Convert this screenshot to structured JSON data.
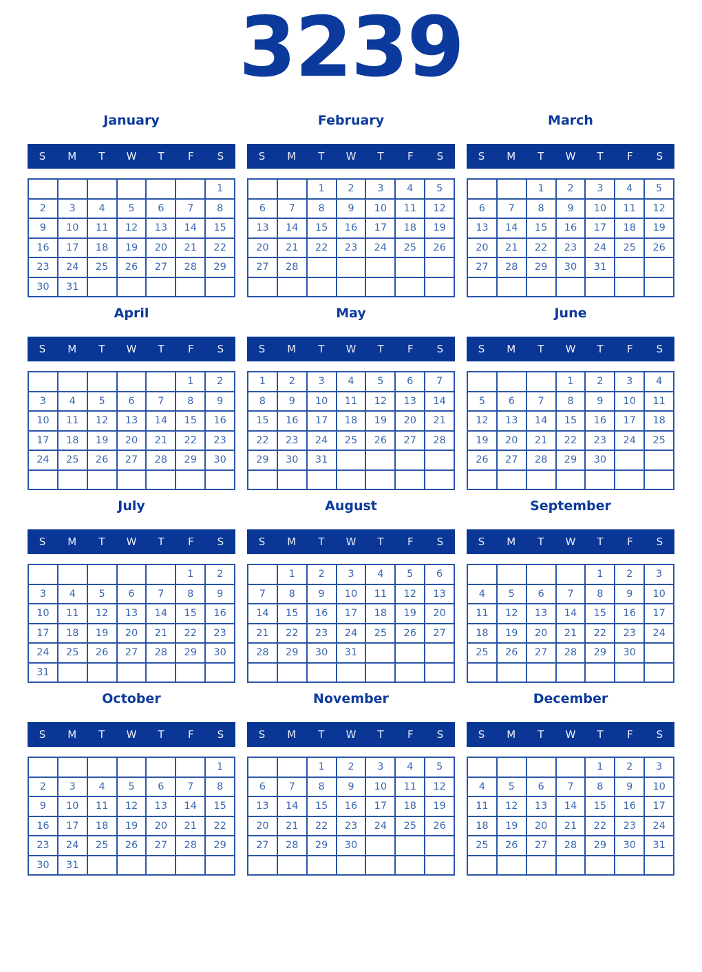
{
  "year_title": "3239",
  "weekday_letters": [
    "S",
    "M",
    "T",
    "W",
    "T",
    "F",
    "S"
  ],
  "colors": {
    "header_bg": "#0a3796",
    "grid_line": "#2a55a8",
    "day_number": "#3a67ae",
    "title_text": "#0c3a9c",
    "weekday_text": "#e8ecf6",
    "page_bg": "#ffffff"
  },
  "months": [
    {
      "name": "January",
      "weeks": [
        [
          "",
          "",
          "",
          "",
          "",
          "",
          "1"
        ],
        [
          "2",
          "3",
          "4",
          "5",
          "6",
          "7",
          "8"
        ],
        [
          "9",
          "10",
          "11",
          "12",
          "13",
          "14",
          "15"
        ],
        [
          "16",
          "17",
          "18",
          "19",
          "20",
          "21",
          "22"
        ],
        [
          "23",
          "24",
          "25",
          "26",
          "27",
          "28",
          "29"
        ],
        [
          "30",
          "31",
          "",
          "",
          "",
          "",
          ""
        ]
      ]
    },
    {
      "name": "February",
      "weeks": [
        [
          "",
          "",
          "1",
          "2",
          "3",
          "4",
          "5"
        ],
        [
          "6",
          "7",
          "8",
          "9",
          "10",
          "11",
          "12"
        ],
        [
          "13",
          "14",
          "15",
          "16",
          "17",
          "18",
          "19"
        ],
        [
          "20",
          "21",
          "22",
          "23",
          "24",
          "25",
          "26"
        ],
        [
          "27",
          "28",
          "",
          "",
          "",
          "",
          ""
        ],
        [
          "",
          "",
          "",
          "",
          "",
          "",
          ""
        ]
      ]
    },
    {
      "name": "March",
      "weeks": [
        [
          "",
          "",
          "1",
          "2",
          "3",
          "4",
          "5"
        ],
        [
          "6",
          "7",
          "8",
          "9",
          "10",
          "11",
          "12"
        ],
        [
          "13",
          "14",
          "15",
          "16",
          "17",
          "18",
          "19"
        ],
        [
          "20",
          "21",
          "22",
          "23",
          "24",
          "25",
          "26"
        ],
        [
          "27",
          "28",
          "29",
          "30",
          "31",
          "",
          ""
        ],
        [
          "",
          "",
          "",
          "",
          "",
          "",
          ""
        ]
      ]
    },
    {
      "name": "April",
      "weeks": [
        [
          "",
          "",
          "",
          "",
          "",
          "1",
          "2"
        ],
        [
          "3",
          "4",
          "5",
          "6",
          "7",
          "8",
          "9"
        ],
        [
          "10",
          "11",
          "12",
          "13",
          "14",
          "15",
          "16"
        ],
        [
          "17",
          "18",
          "19",
          "20",
          "21",
          "22",
          "23"
        ],
        [
          "24",
          "25",
          "26",
          "27",
          "28",
          "29",
          "30"
        ],
        [
          "",
          "",
          "",
          "",
          "",
          "",
          ""
        ]
      ]
    },
    {
      "name": "May",
      "weeks": [
        [
          "1",
          "2",
          "3",
          "4",
          "5",
          "6",
          "7"
        ],
        [
          "8",
          "9",
          "10",
          "11",
          "12",
          "13",
          "14"
        ],
        [
          "15",
          "16",
          "17",
          "18",
          "19",
          "20",
          "21"
        ],
        [
          "22",
          "23",
          "24",
          "25",
          "26",
          "27",
          "28"
        ],
        [
          "29",
          "30",
          "31",
          "",
          "",
          "",
          ""
        ],
        [
          "",
          "",
          "",
          "",
          "",
          "",
          ""
        ]
      ]
    },
    {
      "name": "June",
      "weeks": [
        [
          "",
          "",
          "",
          "1",
          "2",
          "3",
          "4"
        ],
        [
          "5",
          "6",
          "7",
          "8",
          "9",
          "10",
          "11"
        ],
        [
          "12",
          "13",
          "14",
          "15",
          "16",
          "17",
          "18"
        ],
        [
          "19",
          "20",
          "21",
          "22",
          "23",
          "24",
          "25"
        ],
        [
          "26",
          "27",
          "28",
          "29",
          "30",
          "",
          ""
        ],
        [
          "",
          "",
          "",
          "",
          "",
          "",
          ""
        ]
      ]
    },
    {
      "name": "July",
      "weeks": [
        [
          "",
          "",
          "",
          "",
          "",
          "1",
          "2"
        ],
        [
          "3",
          "4",
          "5",
          "6",
          "7",
          "8",
          "9"
        ],
        [
          "10",
          "11",
          "12",
          "13",
          "14",
          "15",
          "16"
        ],
        [
          "17",
          "18",
          "19",
          "20",
          "21",
          "22",
          "23"
        ],
        [
          "24",
          "25",
          "26",
          "27",
          "28",
          "29",
          "30"
        ],
        [
          "31",
          "",
          "",
          "",
          "",
          "",
          ""
        ]
      ]
    },
    {
      "name": "August",
      "weeks": [
        [
          "",
          "1",
          "2",
          "3",
          "4",
          "5",
          "6"
        ],
        [
          "7",
          "8",
          "9",
          "10",
          "11",
          "12",
          "13"
        ],
        [
          "14",
          "15",
          "16",
          "17",
          "18",
          "19",
          "20"
        ],
        [
          "21",
          "22",
          "23",
          "24",
          "25",
          "26",
          "27"
        ],
        [
          "28",
          "29",
          "30",
          "31",
          "",
          "",
          ""
        ],
        [
          "",
          "",
          "",
          "",
          "",
          "",
          ""
        ]
      ]
    },
    {
      "name": "September",
      "weeks": [
        [
          "",
          "",
          "",
          "",
          "1",
          "2",
          "3"
        ],
        [
          "4",
          "5",
          "6",
          "7",
          "8",
          "9",
          "10"
        ],
        [
          "11",
          "12",
          "13",
          "14",
          "15",
          "16",
          "17"
        ],
        [
          "18",
          "19",
          "20",
          "21",
          "22",
          "23",
          "24"
        ],
        [
          "25",
          "26",
          "27",
          "28",
          "29",
          "30",
          ""
        ],
        [
          "",
          "",
          "",
          "",
          "",
          "",
          ""
        ]
      ]
    },
    {
      "name": "October",
      "weeks": [
        [
          "",
          "",
          "",
          "",
          "",
          "",
          "1"
        ],
        [
          "2",
          "3",
          "4",
          "5",
          "6",
          "7",
          "8"
        ],
        [
          "9",
          "10",
          "11",
          "12",
          "13",
          "14",
          "15"
        ],
        [
          "16",
          "17",
          "18",
          "19",
          "20",
          "21",
          "22"
        ],
        [
          "23",
          "24",
          "25",
          "26",
          "27",
          "28",
          "29"
        ],
        [
          "30",
          "31",
          "",
          "",
          "",
          "",
          ""
        ]
      ]
    },
    {
      "name": "November",
      "weeks": [
        [
          "",
          "",
          "1",
          "2",
          "3",
          "4",
          "5"
        ],
        [
          "6",
          "7",
          "8",
          "9",
          "10",
          "11",
          "12"
        ],
        [
          "13",
          "14",
          "15",
          "16",
          "17",
          "18",
          "19"
        ],
        [
          "20",
          "21",
          "22",
          "23",
          "24",
          "25",
          "26"
        ],
        [
          "27",
          "28",
          "29",
          "30",
          "",
          "",
          ""
        ],
        [
          "",
          "",
          "",
          "",
          "",
          "",
          ""
        ]
      ]
    },
    {
      "name": "December",
      "weeks": [
        [
          "",
          "",
          "",
          "",
          "1",
          "2",
          "3"
        ],
        [
          "4",
          "5",
          "6",
          "7",
          "8",
          "9",
          "10"
        ],
        [
          "11",
          "12",
          "13",
          "14",
          "15",
          "16",
          "17"
        ],
        [
          "18",
          "19",
          "20",
          "21",
          "22",
          "23",
          "24"
        ],
        [
          "25",
          "26",
          "27",
          "28",
          "29",
          "30",
          "31"
        ],
        [
          "",
          "",
          "",
          "",
          "",
          "",
          ""
        ]
      ]
    }
  ]
}
